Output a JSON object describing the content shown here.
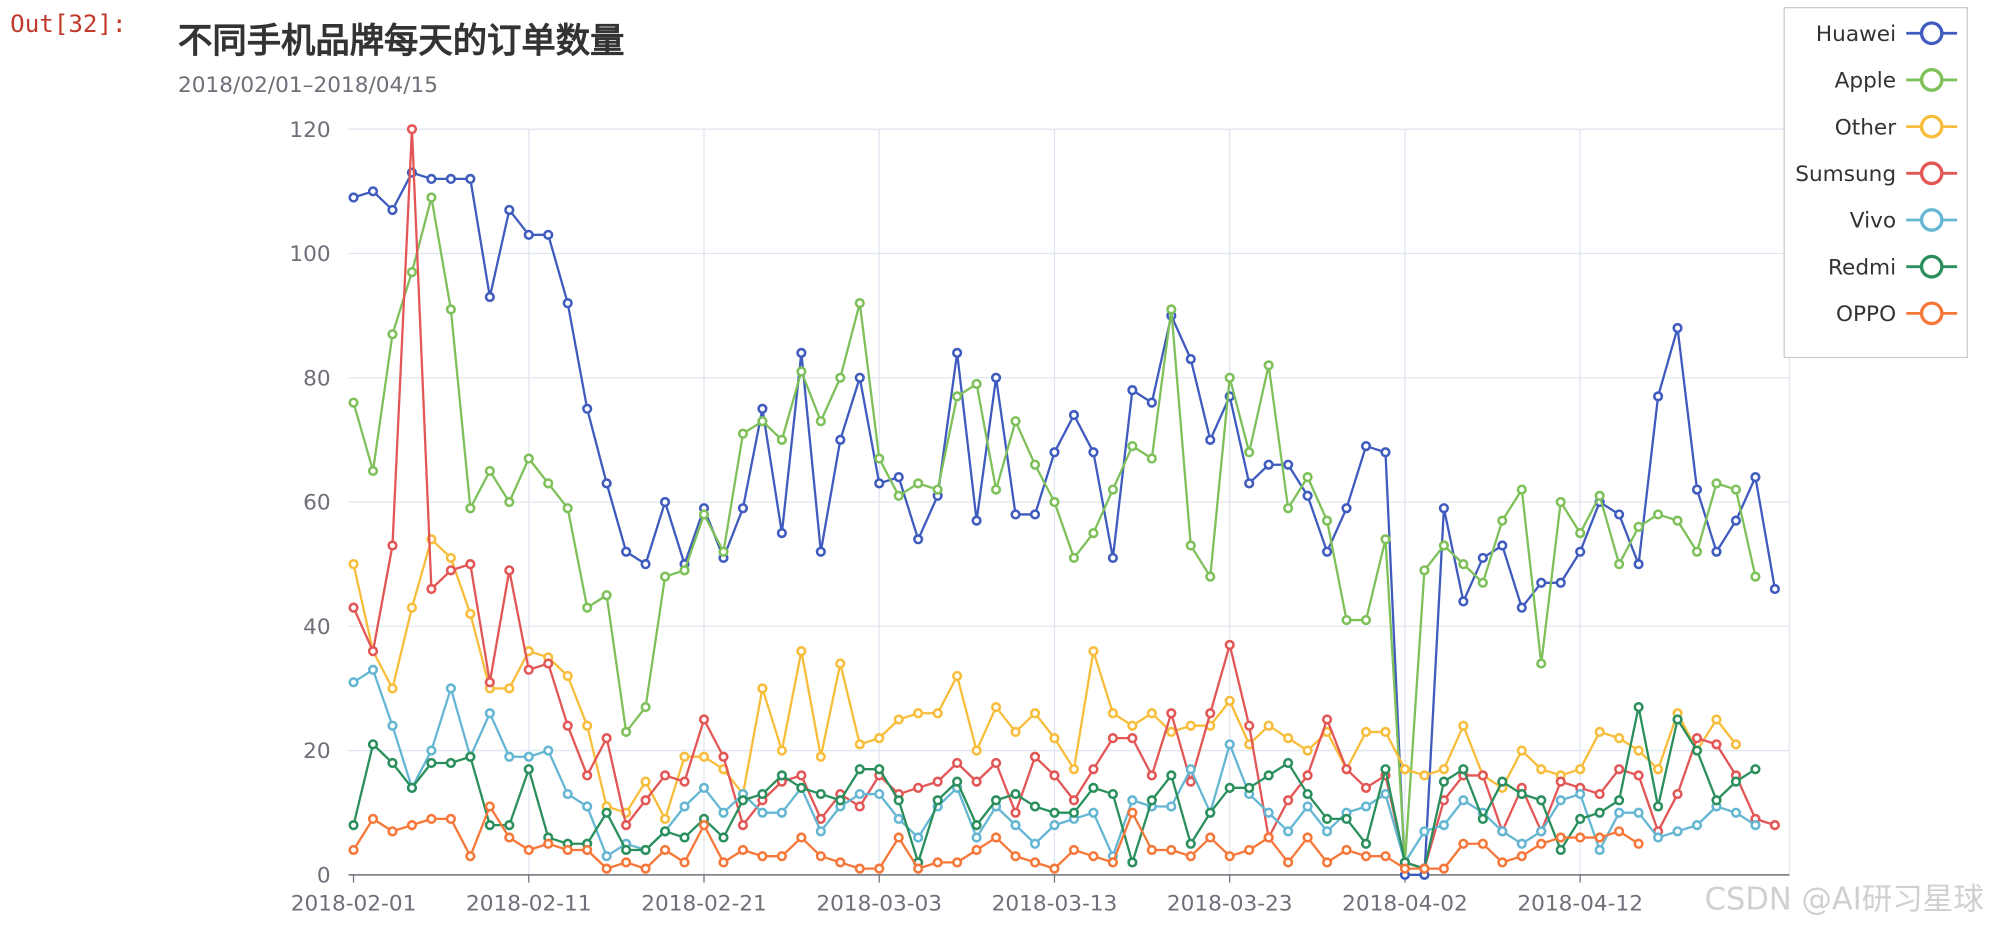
{
  "cell": {
    "prompt": "Out[32]:"
  },
  "watermark": "CSDN @AI研习星球",
  "chart_data": {
    "type": "line",
    "title": "不同手机品牌每天的订单数量",
    "subtitle": "2018/02/01–2018/04/15",
    "xlabel": "",
    "ylabel": "",
    "ylim": [
      0,
      120
    ],
    "yticks": [
      0,
      20,
      40,
      60,
      80,
      100,
      120
    ],
    "x_tick_labels": [
      "2018-02-01",
      "2018-02-11",
      "2018-02-21",
      "2018-03-03",
      "2018-03-13",
      "2018-03-23",
      "2018-04-02",
      "2018-04-12"
    ],
    "x_start": "2018-02-01",
    "x_end": "2018-04-15",
    "grid": true,
    "legend": "top-right",
    "series": [
      {
        "name": "Huawei",
        "color": "#3f5bbe",
        "values": [
          109,
          110,
          107,
          113,
          112,
          112,
          112,
          93,
          107,
          103,
          103,
          92,
          75,
          63,
          52,
          50,
          60,
          50,
          59,
          51,
          59,
          75,
          55,
          84,
          52,
          70,
          80,
          63,
          64,
          54,
          61,
          84,
          57,
          80,
          58,
          58,
          68,
          74,
          68,
          51,
          78,
          76,
          90,
          83,
          70,
          77,
          63,
          66,
          66,
          61,
          52,
          59,
          69,
          68,
          0,
          0,
          59,
          44,
          51,
          53,
          43,
          47,
          47,
          52,
          60,
          58,
          50,
          77,
          88,
          62,
          52,
          57,
          64,
          46
        ]
      },
      {
        "name": "Apple",
        "color": "#7ec05a",
        "values": [
          76,
          65,
          87,
          97,
          109,
          91,
          59,
          65,
          60,
          67,
          63,
          59,
          43,
          45,
          23,
          27,
          48,
          49,
          58,
          52,
          71,
          73,
          70,
          81,
          73,
          80,
          92,
          67,
          61,
          63,
          62,
          77,
          79,
          62,
          73,
          66,
          60,
          51,
          55,
          62,
          69,
          67,
          91,
          53,
          48,
          80,
          68,
          82,
          59,
          64,
          57,
          41,
          41,
          54,
          2,
          49,
          53,
          50,
          47,
          57,
          62,
          34,
          60,
          55,
          61,
          50,
          56,
          58,
          57,
          52,
          63,
          62,
          48,
          null
        ]
      },
      {
        "name": "Other",
        "color": "#f7bd3b",
        "values": [
          50,
          36,
          30,
          43,
          54,
          51,
          42,
          30,
          30,
          36,
          35,
          32,
          24,
          11,
          10,
          15,
          9,
          19,
          19,
          17,
          13,
          30,
          20,
          36,
          19,
          34,
          21,
          22,
          25,
          26,
          26,
          32,
          20,
          27,
          23,
          26,
          22,
          17,
          36,
          26,
          24,
          26,
          23,
          24,
          24,
          28,
          21,
          24,
          22,
          20,
          23,
          17,
          23,
          23,
          17,
          16,
          17,
          24,
          16,
          14,
          20,
          17,
          16,
          17,
          23,
          22,
          20,
          17,
          26,
          20,
          25,
          21,
          null,
          null
        ]
      },
      {
        "name": "Sumsung",
        "color": "#e35656",
        "values": [
          43,
          36,
          53,
          120,
          46,
          49,
          50,
          31,
          49,
          33,
          34,
          24,
          16,
          22,
          8,
          12,
          16,
          15,
          25,
          19,
          8,
          12,
          15,
          16,
          9,
          13,
          11,
          16,
          13,
          14,
          15,
          18,
          15,
          18,
          10,
          19,
          16,
          12,
          17,
          22,
          22,
          16,
          26,
          15,
          26,
          37,
          24,
          6,
          12,
          16,
          25,
          17,
          14,
          16,
          2,
          1,
          12,
          16,
          16,
          7,
          14,
          7,
          15,
          14,
          13,
          17,
          16,
          7,
          13,
          22,
          21,
          16,
          9,
          8
        ]
      },
      {
        "name": "Vivo",
        "color": "#64b6d3",
        "values": [
          31,
          33,
          24,
          14,
          20,
          30,
          19,
          26,
          19,
          19,
          20,
          13,
          11,
          3,
          5,
          4,
          7,
          11,
          14,
          10,
          13,
          10,
          10,
          14,
          7,
          11,
          13,
          13,
          9,
          6,
          11,
          14,
          6,
          11,
          8,
          5,
          8,
          9,
          10,
          3,
          12,
          11,
          11,
          17,
          10,
          21,
          13,
          10,
          7,
          11,
          7,
          10,
          11,
          13,
          2,
          7,
          8,
          12,
          10,
          7,
          5,
          7,
          12,
          13,
          4,
          10,
          10,
          6,
          7,
          8,
          11,
          10,
          8,
          null
        ]
      },
      {
        "name": "Redmi",
        "color": "#2a8f5c",
        "values": [
          8,
          21,
          18,
          14,
          18,
          18,
          19,
          8,
          8,
          17,
          6,
          5,
          5,
          10,
          4,
          4,
          7,
          6,
          9,
          6,
          12,
          13,
          16,
          14,
          13,
          12,
          17,
          17,
          12,
          2,
          12,
          15,
          8,
          12,
          13,
          11,
          10,
          10,
          14,
          13,
          2,
          12,
          16,
          5,
          10,
          14,
          14,
          16,
          18,
          13,
          9,
          9,
          5,
          17,
          2,
          1,
          15,
          17,
          9,
          15,
          13,
          12,
          4,
          9,
          10,
          12,
          27,
          11,
          25,
          20,
          12,
          15,
          17,
          null
        ]
      },
      {
        "name": "OPPO",
        "color": "#f6773a",
        "values": [
          4,
          9,
          7,
          8,
          9,
          9,
          3,
          11,
          6,
          4,
          5,
          4,
          4,
          1,
          2,
          1,
          4,
          2,
          8,
          2,
          4,
          3,
          3,
          6,
          3,
          2,
          1,
          1,
          6,
          1,
          2,
          2,
          4,
          6,
          3,
          2,
          1,
          4,
          3,
          2,
          10,
          4,
          4,
          3,
          6,
          3,
          4,
          6,
          2,
          6,
          2,
          4,
          3,
          3,
          1,
          1,
          1,
          5,
          5,
          2,
          3,
          5,
          6,
          6,
          6,
          7,
          5,
          null,
          null,
          null,
          null,
          null,
          null,
          null
        ]
      }
    ]
  }
}
